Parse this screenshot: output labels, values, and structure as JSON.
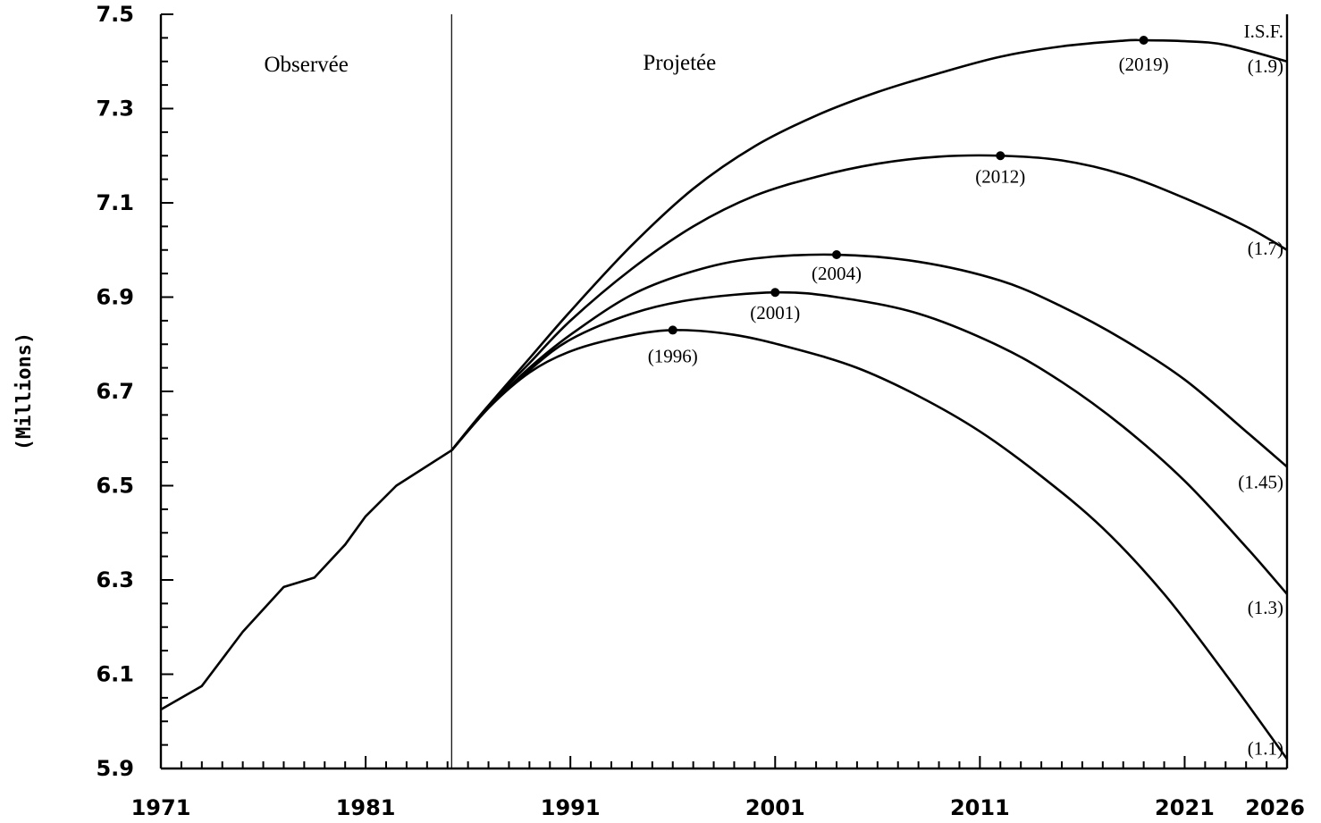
{
  "chart_data": {
    "type": "line",
    "title": "",
    "xlabel": "",
    "ylabel": "(Millions)",
    "xlim": [
      1971,
      2026
    ],
    "ylim": [
      5.9,
      7.5
    ],
    "xticks": [
      "1971",
      "1981",
      "1991",
      "2001",
      "2011",
      "2021",
      "2026"
    ],
    "yticks": [
      "5.9",
      "6.1",
      "6.3",
      "6.5",
      "6.7",
      "6.9",
      "7.1",
      "7.3",
      "7.5"
    ],
    "regions": {
      "observed_label": "Observée",
      "projected_label": "Projetée",
      "divider_year": 1985.2
    },
    "legend_title": "I.S.F.",
    "observed": {
      "x": [
        1971,
        1973,
        1975,
        1977,
        1978.5,
        1980,
        1981,
        1982.5,
        1985.2
      ],
      "y": [
        6.025,
        6.075,
        6.19,
        6.285,
        6.305,
        6.375,
        6.435,
        6.5,
        6.575
      ]
    },
    "series": [
      {
        "name": "(1.9)",
        "peak": {
          "year": 2019,
          "value": 7.445,
          "label": "(2019)"
        },
        "x": [
          1985.2,
          1987,
          1989,
          1991,
          1994,
          1997,
          2000,
          2003,
          2006,
          2009,
          2012,
          2015,
          2018,
          2019,
          2021,
          2023,
          2026
        ],
        "y": [
          6.575,
          6.67,
          6.77,
          6.87,
          7.01,
          7.13,
          7.22,
          7.285,
          7.335,
          7.375,
          7.41,
          7.432,
          7.444,
          7.445,
          7.443,
          7.435,
          7.4
        ]
      },
      {
        "name": "(1.7)",
        "peak": {
          "year": 2012,
          "value": 7.2,
          "label": "(2012)"
        },
        "x": [
          1985.2,
          1987,
          1989,
          1991,
          1994,
          1997,
          2000,
          2003,
          2006,
          2009,
          2012,
          2015,
          2018,
          2021,
          2024,
          2026
        ],
        "y": [
          6.575,
          6.67,
          6.76,
          6.85,
          6.96,
          7.05,
          7.115,
          7.155,
          7.183,
          7.198,
          7.2,
          7.19,
          7.16,
          7.11,
          7.05,
          7.0
        ]
      },
      {
        "name": "(1.45)",
        "peak": {
          "year": 2004,
          "value": 6.99,
          "label": "(2004)"
        },
        "x": [
          1985.2,
          1987,
          1989,
          1991,
          1994,
          1997,
          2000,
          2004,
          2008,
          2012,
          2015,
          2018,
          2021,
          2024,
          2026
        ],
        "y": [
          6.575,
          6.665,
          6.75,
          6.82,
          6.905,
          6.955,
          6.982,
          6.99,
          6.975,
          6.935,
          6.88,
          6.81,
          6.725,
          6.615,
          6.54
        ]
      },
      {
        "name": "(1.3)",
        "peak": {
          "year": 2001,
          "value": 6.91,
          "label": "(2001)"
        },
        "x": [
          1985.2,
          1987,
          1989,
          1991,
          1994,
          1997,
          2001,
          2004,
          2008,
          2012,
          2015,
          2018,
          2021,
          2024,
          2026
        ],
        "y": [
          6.575,
          6.665,
          6.745,
          6.81,
          6.865,
          6.895,
          6.91,
          6.9,
          6.865,
          6.795,
          6.72,
          6.625,
          6.51,
          6.37,
          6.27
        ]
      },
      {
        "name": "(1.1)",
        "peak": {
          "year": 1996,
          "value": 6.83,
          "label": "(1996)"
        },
        "x": [
          1985.2,
          1987,
          1989,
          1991,
          1993.5,
          1996,
          1999,
          2002,
          2005,
          2008,
          2011,
          2014,
          2017,
          2020,
          2023,
          2026
        ],
        "y": [
          6.575,
          6.665,
          6.74,
          6.785,
          6.815,
          6.83,
          6.82,
          6.79,
          6.75,
          6.69,
          6.615,
          6.52,
          6.41,
          6.27,
          6.1,
          5.92
        ]
      }
    ]
  }
}
